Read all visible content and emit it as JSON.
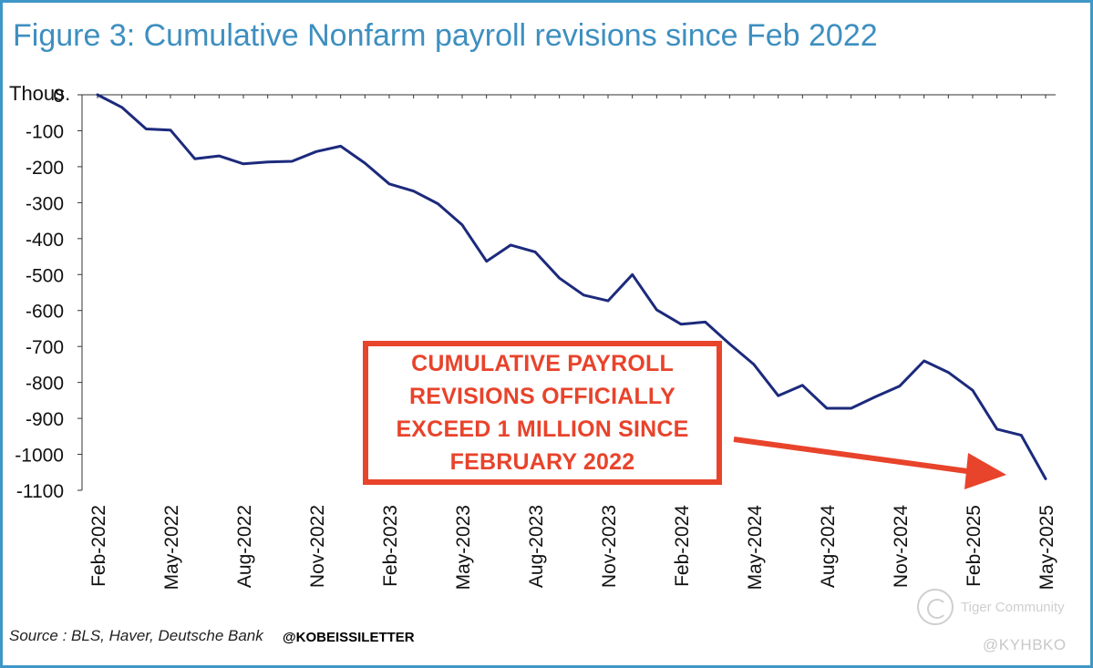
{
  "chart_data": {
    "type": "line",
    "title": "Figure 3: Cumulative Nonfarm payroll revisions since Feb 2022",
    "ylabel": "Thous.",
    "xlabel": "",
    "ylim": [
      -1100,
      0
    ],
    "yticks": [
      0,
      -100,
      -200,
      -300,
      -400,
      -500,
      -600,
      -700,
      -800,
      -900,
      -1000,
      -1100
    ],
    "ytick_labels": [
      "0",
      "-100",
      "-200",
      "-300",
      "-400",
      "-500",
      "-600",
      "-700",
      "-800",
      "-900",
      "-1000",
      "-1100"
    ],
    "xtick_labels": [
      "Feb-2022",
      "May-2022",
      "Aug-2022",
      "Nov-2022",
      "Feb-2023",
      "May-2023",
      "Aug-2023",
      "Nov-2023",
      "Feb-2024",
      "May-2024",
      "Aug-2024",
      "Nov-2024",
      "Feb-2025",
      "May-2025"
    ],
    "xtick_index": [
      0,
      3,
      6,
      9,
      12,
      15,
      18,
      21,
      24,
      27,
      30,
      33,
      36,
      39
    ],
    "series": [
      {
        "name": "Cumulative Nonfarm payroll revisions",
        "color": "#1c2a7c",
        "values": [
          0,
          -35,
          -95,
          -98,
          -178,
          -170,
          -192,
          -187,
          -185,
          -158,
          -143,
          -190,
          -248,
          -268,
          -303,
          -362,
          -463,
          -418,
          -437,
          -510,
          -557,
          -573,
          -500,
          -598,
          -638,
          -632,
          -693,
          -750,
          -837,
          -808,
          -872,
          -872,
          -840,
          -810,
          -740,
          -772,
          -822,
          -930,
          -947,
          -1068
        ]
      }
    ],
    "annotation": {
      "text": "CUMULATIVE PAYROLL\nREVISIONS OFFICIALLY\nEXCEED 1 MILLION SINCE\nFEBRUARY 2022",
      "color": "#e8432b"
    }
  },
  "footer": {
    "source": "Source : BLS, Haver, Deutsche Bank",
    "handle": "@KOBEISSILETTER"
  },
  "watermark": {
    "brand": "Tiger Community",
    "handle": "@KYHBKO"
  },
  "colors": {
    "title": "#3d8fbf",
    "frame": "#3f97c7",
    "line": "#1c2a7c",
    "callout": "#e8432b"
  }
}
